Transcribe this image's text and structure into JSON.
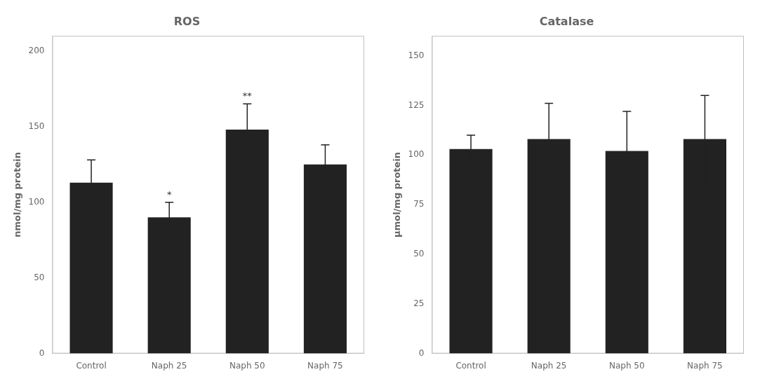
{
  "chart_data": [
    {
      "type": "bar",
      "title": "ROS",
      "categories": [
        "Control",
        "Naph 25",
        "Naph 50",
        "Naph 75"
      ],
      "values": [
        113,
        90,
        148,
        125
      ],
      "errors": [
        15,
        10,
        17,
        13
      ],
      "ylabel": "nmol/mg protein",
      "ylim": [
        0,
        210
      ],
      "yticks": [
        0,
        50,
        100,
        150,
        200
      ],
      "annotations": [
        null,
        "*",
        "**",
        null
      ],
      "color": "#222222",
      "grid": false
    },
    {
      "type": "bar",
      "title": "Catalase",
      "categories": [
        "Control",
        "Naph 25",
        "Naph 50",
        "Naph 75"
      ],
      "values": [
        103,
        108,
        102,
        108
      ],
      "errors": [
        7,
        18,
        20,
        22
      ],
      "ylabel": "μmol/mg protein",
      "ylim": [
        0,
        160
      ],
      "yticks": [
        0,
        25,
        50,
        75,
        100,
        125,
        150
      ],
      "color": "#222222",
      "grid": false
    }
  ]
}
